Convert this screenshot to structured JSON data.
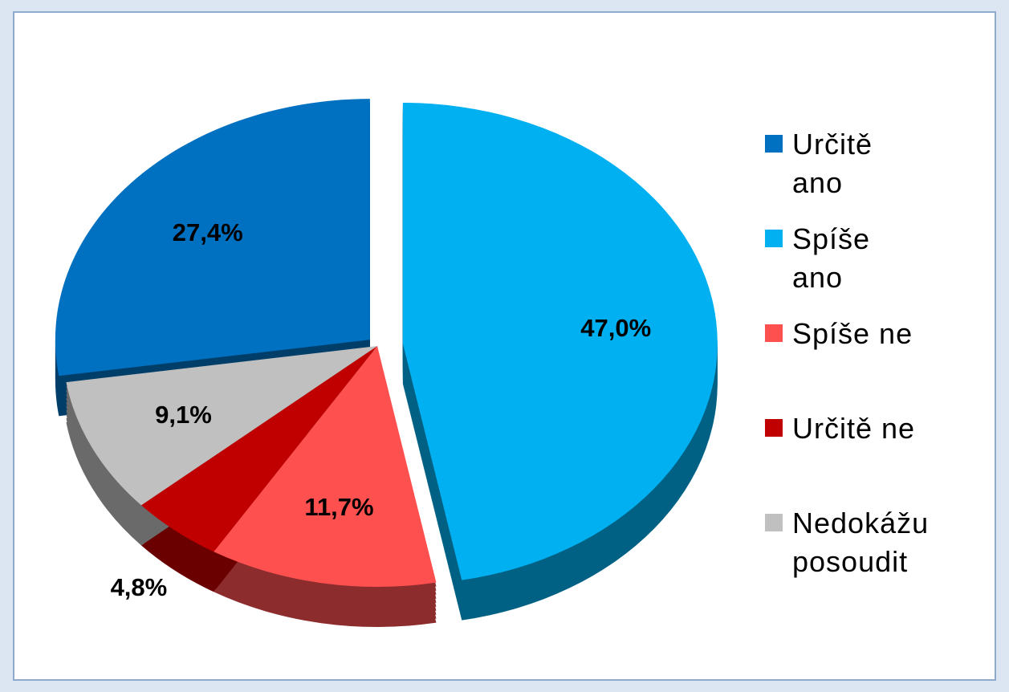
{
  "chart_data": {
    "type": "pie",
    "categories": [
      "Určitě ano",
      "Spíše ano",
      "Spíše ne",
      "Určitě ne",
      "Nedokážu posoudit"
    ],
    "values": [
      27.4,
      47.0,
      11.7,
      4.8,
      9.1
    ],
    "value_labels": [
      "27,4%",
      "47,0%",
      "11,7%",
      "4,8%",
      "9,1%"
    ],
    "colors": [
      "#0070c0",
      "#00b0f0",
      "#ff5050",
      "#c00000",
      "#c0c0c0"
    ],
    "legend": "right"
  }
}
